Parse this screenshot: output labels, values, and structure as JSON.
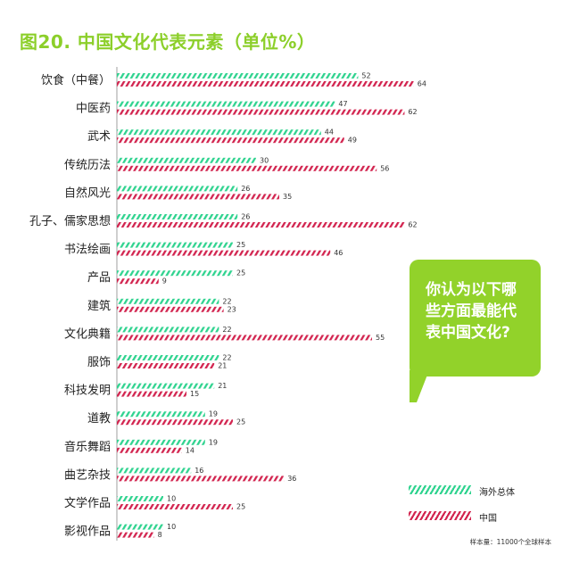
{
  "title": "图20. 中国文化代表元素（单位%）",
  "bubble_text": "你认为以下哪些方面最能代表中国文化?",
  "footnote": "样本量：11000个全球样本",
  "colors": {
    "overseas": "#2fd38f",
    "china": "#d2244f",
    "accent": "#92d22a"
  },
  "chart_data": {
    "type": "bar",
    "orientation": "horizontal",
    "categories": [
      "饮食（中餐）",
      "中医药",
      "武术",
      "传统历法",
      "自然风光",
      "孔子、儒家思想",
      "书法绘画",
      "产品",
      "建筑",
      "文化典籍",
      "服饰",
      "科技发明",
      "道教",
      "音乐舞蹈",
      "曲艺杂技",
      "文学作品",
      "影视作品"
    ],
    "series": [
      {
        "name": "海外总体",
        "values": [
          52,
          47,
          44,
          30,
          26,
          26,
          25,
          25,
          22,
          22,
          22,
          21,
          19,
          19,
          16,
          10,
          10
        ]
      },
      {
        "name": "中国",
        "values": [
          64,
          62,
          49,
          56,
          35,
          62,
          46,
          9,
          23,
          55,
          21,
          15,
          25,
          14,
          36,
          25,
          8
        ]
      }
    ],
    "xlim": [
      0,
      70
    ],
    "grid": false,
    "legend_position": "bottom-right"
  }
}
